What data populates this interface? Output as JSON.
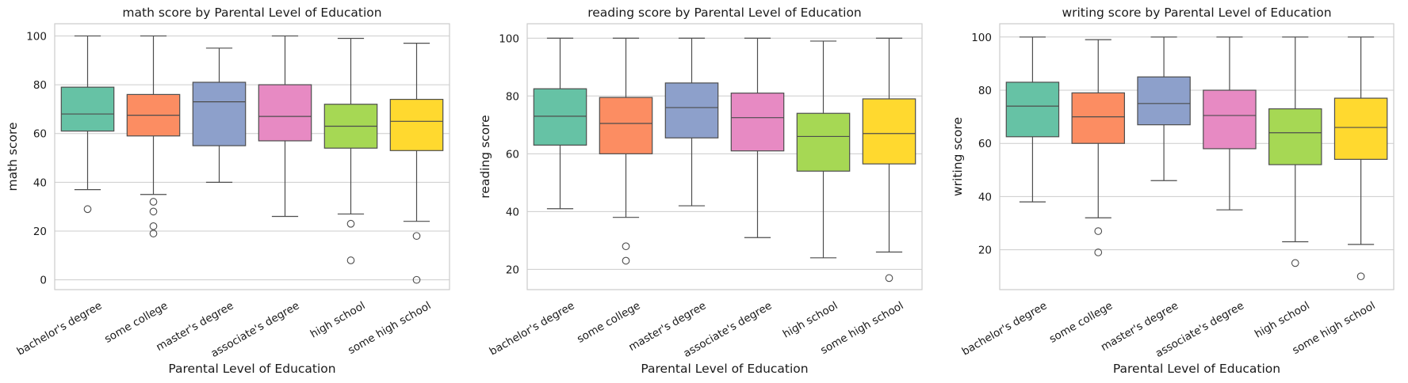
{
  "chart_data": [
    {
      "type": "box",
      "title": "math score by Parental Level of Education",
      "xlabel": "Parental Level of Education",
      "ylabel": "math score",
      "ylim": [
        -4,
        105
      ],
      "yticks": [
        "0",
        "20",
        "40",
        "60",
        "80",
        "100"
      ],
      "grid": "y",
      "categories": [
        "bachelor's degree",
        "some college",
        "master's degree",
        "associate's degree",
        "high school",
        "some high school"
      ],
      "boxes": [
        {
          "whisker_low": 37,
          "q1": 61,
          "median": 68,
          "q3": 79,
          "whisker_high": 100,
          "outliers": [
            29
          ]
        },
        {
          "whisker_low": 35,
          "q1": 59,
          "median": 67.5,
          "q3": 76,
          "whisker_high": 100,
          "outliers": [
            32,
            28,
            22,
            19
          ]
        },
        {
          "whisker_low": 40,
          "q1": 55,
          "median": 73,
          "q3": 81,
          "whisker_high": 95,
          "outliers": []
        },
        {
          "whisker_low": 26,
          "q1": 57,
          "median": 67,
          "q3": 80,
          "whisker_high": 100,
          "outliers": []
        },
        {
          "whisker_low": 27,
          "q1": 54,
          "median": 63,
          "q3": 72,
          "whisker_high": 99,
          "outliers": [
            23,
            8
          ]
        },
        {
          "whisker_low": 24,
          "q1": 53,
          "median": 65,
          "q3": 74,
          "whisker_high": 97,
          "outliers": [
            18,
            0
          ]
        }
      ]
    },
    {
      "type": "box",
      "title": "reading score by Parental Level of Education",
      "xlabel": "Parental Level of Education",
      "ylabel": "reading score",
      "ylim": [
        13,
        105
      ],
      "yticks": [
        "20",
        "40",
        "60",
        "80",
        "100"
      ],
      "grid": "y",
      "categories": [
        "bachelor's degree",
        "some college",
        "master's degree",
        "associate's degree",
        "high school",
        "some high school"
      ],
      "boxes": [
        {
          "whisker_low": 41,
          "q1": 63,
          "median": 73,
          "q3": 82.5,
          "whisker_high": 100,
          "outliers": []
        },
        {
          "whisker_low": 38,
          "q1": 60,
          "median": 70.5,
          "q3": 79.5,
          "whisker_high": 100,
          "outliers": [
            28,
            23
          ]
        },
        {
          "whisker_low": 42,
          "q1": 65.5,
          "median": 76,
          "q3": 84.5,
          "whisker_high": 100,
          "outliers": []
        },
        {
          "whisker_low": 31,
          "q1": 61,
          "median": 72.5,
          "q3": 81,
          "whisker_high": 100,
          "outliers": []
        },
        {
          "whisker_low": 24,
          "q1": 54,
          "median": 66,
          "q3": 74,
          "whisker_high": 99,
          "outliers": []
        },
        {
          "whisker_low": 26,
          "q1": 56.5,
          "median": 67,
          "q3": 79,
          "whisker_high": 100,
          "outliers": [
            17
          ]
        }
      ]
    },
    {
      "type": "box",
      "title": "writing score by Parental Level of Education",
      "xlabel": "Parental Level of Education",
      "ylabel": "writing score",
      "ylim": [
        5,
        105
      ],
      "yticks": [
        "20",
        "40",
        "60",
        "80",
        "100"
      ],
      "grid": "y",
      "categories": [
        "bachelor's degree",
        "some college",
        "master's degree",
        "associate's degree",
        "high school",
        "some high school"
      ],
      "boxes": [
        {
          "whisker_low": 38,
          "q1": 62.5,
          "median": 74,
          "q3": 83,
          "whisker_high": 100,
          "outliers": []
        },
        {
          "whisker_low": 32,
          "q1": 60,
          "median": 70,
          "q3": 79,
          "whisker_high": 99,
          "outliers": [
            27,
            19
          ]
        },
        {
          "whisker_low": 46,
          "q1": 67,
          "median": 75,
          "q3": 85,
          "whisker_high": 100,
          "outliers": []
        },
        {
          "whisker_low": 35,
          "q1": 58,
          "median": 70.5,
          "q3": 80,
          "whisker_high": 100,
          "outliers": []
        },
        {
          "whisker_low": 23,
          "q1": 52,
          "median": 64,
          "q3": 73,
          "whisker_high": 100,
          "outliers": [
            15
          ]
        },
        {
          "whisker_low": 22,
          "q1": 54,
          "median": 66,
          "q3": 77,
          "whisker_high": 100,
          "outliers": [
            10
          ]
        }
      ]
    }
  ],
  "palette": [
    "#66c2a5",
    "#fc8d62",
    "#8da0cb",
    "#e78ac3",
    "#a6d854",
    "#ffd92f"
  ],
  "box_edge_color": "#4d4d4d",
  "grid_color": "#cccccc",
  "frame_color": "#cccccc"
}
